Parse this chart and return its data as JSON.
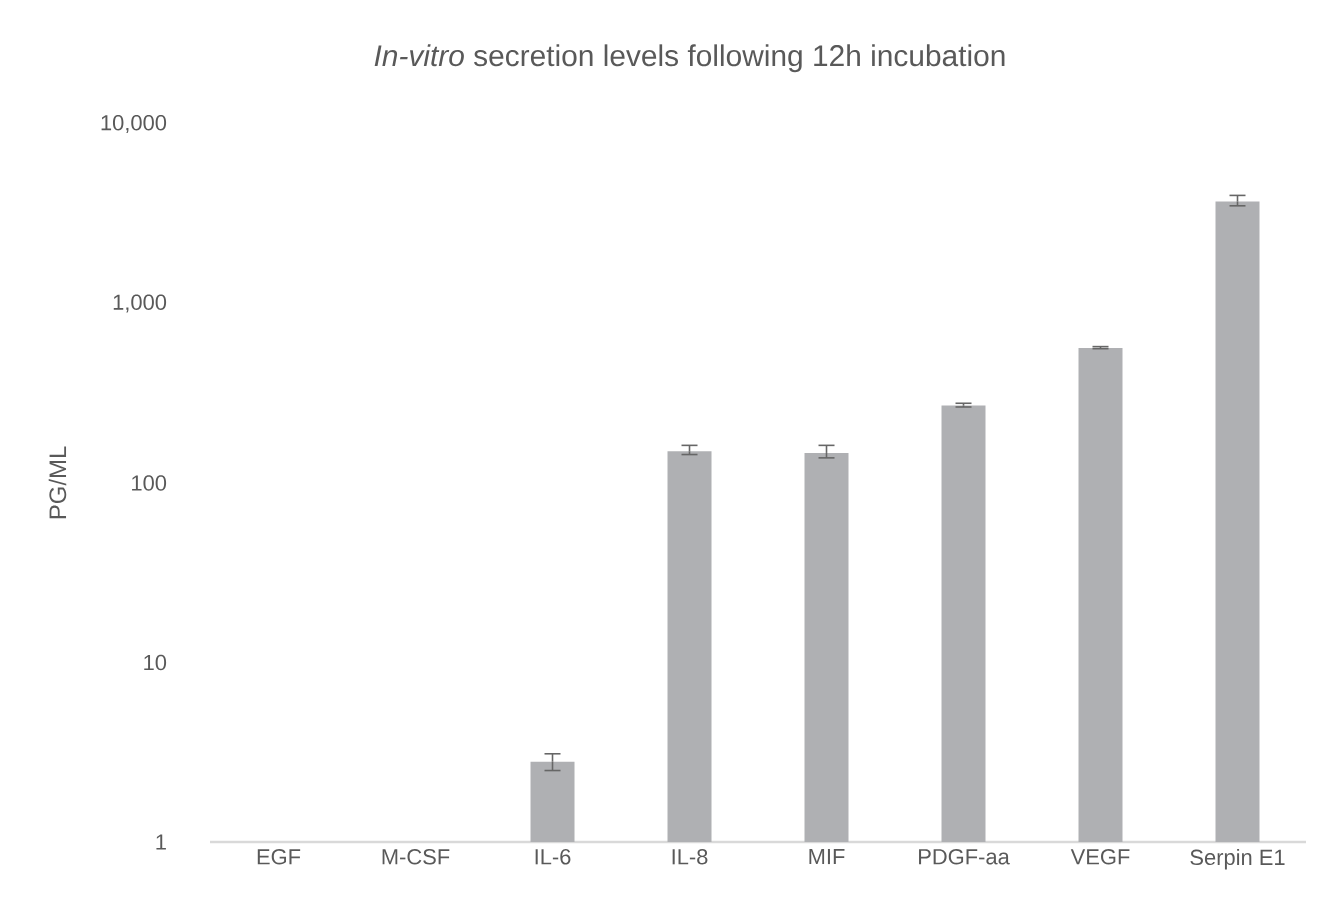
{
  "chart_data": {
    "type": "bar",
    "title": "*In-vitro* secretion levels following 12h incubation",
    "ylabel": "PG/ML",
    "categories": [
      "EGF",
      "M-CSF",
      "IL-6",
      "IL-8",
      "MIF",
      "PDGF-aa",
      "VEGF",
      "Serpin E1"
    ],
    "values": [
      null,
      null,
      2.8,
      150,
      147,
      270,
      565,
      3700
    ],
    "errors": [
      null,
      null,
      [
        2.5,
        3.1
      ],
      [
        144,
        162
      ],
      [
        138,
        162
      ],
      [
        265,
        278
      ],
      [
        560,
        575
      ],
      [
        3500,
        4000
      ]
    ],
    "color": "#afb0b3",
    "log": "y",
    "ylim": [
      1,
      10000
    ],
    "yticks": [
      1,
      10,
      100,
      {
        "value": 1000,
        "label": "1,000"
      },
      {
        "value": 10000,
        "label": "10,000"
      }
    ],
    "marker": "none"
  }
}
